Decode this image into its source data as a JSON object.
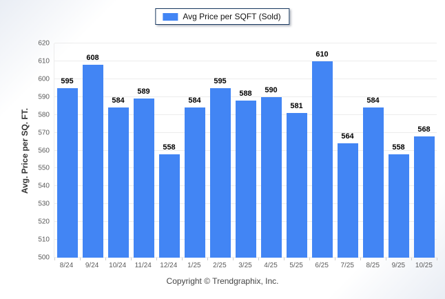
{
  "legend": {
    "label": "Avg Price per SQFT (Sold)"
  },
  "colors": {
    "bar": "#4285f4",
    "legend_border": "#17375e",
    "gridline": "#ececec",
    "tick_text": "#5a5a5a",
    "value_text": "#000000"
  },
  "chart_data": {
    "type": "bar",
    "title": "Avg Price per SQFT (Sold)",
    "categories": [
      "8/24",
      "9/24",
      "10/24",
      "11/24",
      "12/24",
      "1/25",
      "2/25",
      "3/25",
      "4/25",
      "5/25",
      "6/25",
      "7/25",
      "8/25",
      "9/25",
      "10/25"
    ],
    "values": [
      595,
      608,
      584,
      589,
      558,
      584,
      595,
      588,
      590,
      581,
      610,
      564,
      584,
      558,
      568
    ],
    "xlabel": "",
    "ylabel": "Avg. Price per SQ. FT.",
    "ylim": [
      500,
      620
    ],
    "ytick_step": 10,
    "grid": true,
    "legend_position": "top-center",
    "value_labels": true
  },
  "footer": {
    "text": "Copyright © Trendgraphix, Inc."
  }
}
